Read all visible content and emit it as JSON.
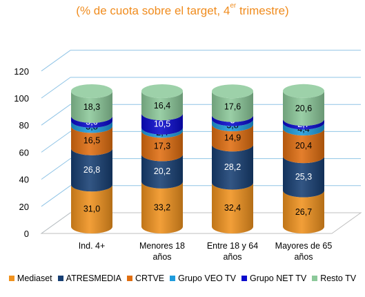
{
  "title_main": "(% de cuota sobre el target, 4",
  "title_sup": "er",
  "title_end": " trimestre)",
  "chart_data": {
    "type": "bar",
    "stacked": true,
    "style": "3d-cylinder",
    "title": "(% de cuota sobre el target, 4er trimestre)",
    "categories": [
      "Ind. 4+",
      "Menores 18 años",
      "Entre 18 y 64 años",
      "Mayores de 65 años"
    ],
    "category_lines": [
      [
        "Ind. 4+"
      ],
      [
        "Menores 18",
        "años"
      ],
      [
        "Entre 18 y 64",
        "años"
      ],
      [
        "Mayores de 65",
        "años"
      ]
    ],
    "ylim": [
      0,
      120
    ],
    "yticks": [
      0,
      20,
      40,
      60,
      80,
      100,
      120
    ],
    "grid": true,
    "legend_position": "bottom",
    "series": [
      {
        "name": "Mediaset",
        "color": "#F0921E",
        "values": [
          31.0,
          33.2,
          32.4,
          26.7
        ],
        "labels": [
          "31,0",
          "33,2",
          "32,4",
          "26,7"
        ]
      },
      {
        "name": "ATRESMEDIA",
        "color": "#173F73",
        "values": [
          26.8,
          20.2,
          28.2,
          25.3
        ],
        "labels": [
          "26,8",
          "20,2",
          "28,2",
          "25,3"
        ]
      },
      {
        "name": "CRTVE",
        "color": "#E06E10",
        "values": [
          16.5,
          17.3,
          14.9,
          20.4
        ],
        "labels": [
          "16,5",
          "17,3",
          "14,9",
          "20,4"
        ]
      },
      {
        "name": "Grupo VEO TV",
        "color": "#1E9BDC",
        "values": [
          3.8,
          2.4,
          3.8,
          4.4
        ],
        "labels": [
          "3,8",
          "2,4",
          "3,8",
          "4,4"
        ]
      },
      {
        "name": "Grupo NET TV",
        "color": "#0A0ACD",
        "values": [
          3.6,
          10.5,
          3,
          2.7
        ],
        "labels": [
          "3,6",
          "10,5",
          "3",
          "2,7"
        ]
      },
      {
        "name": "Resto TV",
        "color": "#8CC99A",
        "values": [
          18.3,
          16.4,
          17.6,
          20.6
        ],
        "labels": [
          "18,3",
          "16,4",
          "17,6",
          "20,6"
        ]
      }
    ]
  }
}
